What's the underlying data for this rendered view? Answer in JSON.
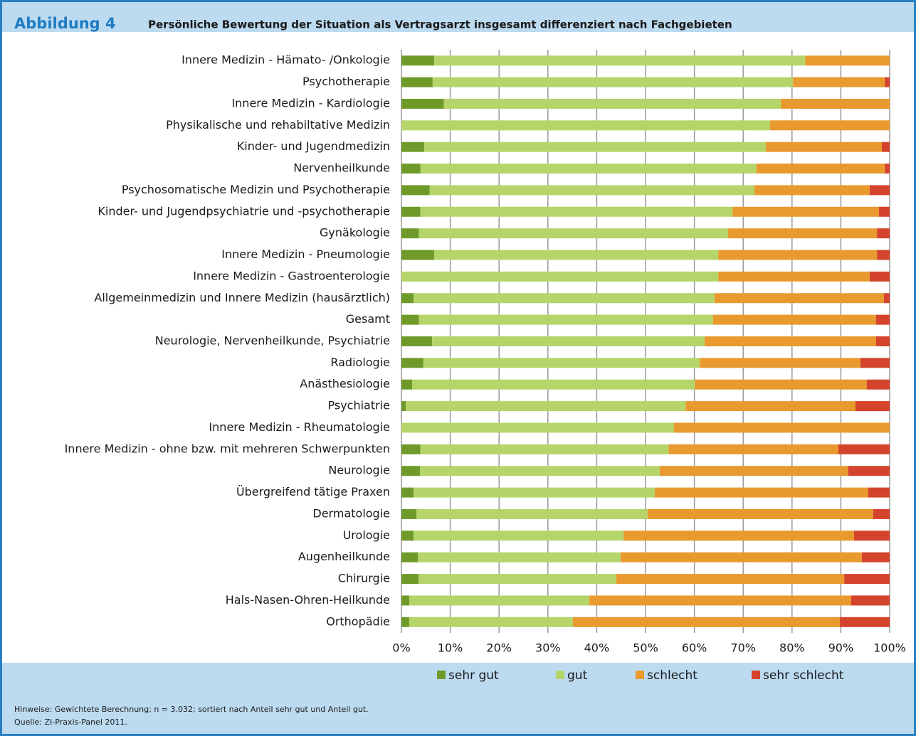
{
  "chart_data": {
    "type": "stacked_barh",
    "figure_label": "Abbildung 4",
    "title": "Persönliche Bewertung der Situation als Vertragsarzt insgesamt differenziert nach Fachgebieten",
    "categories": [
      "Innere Medizin - Hämato- /Onkologie",
      "Psychotherapie",
      "Innere Medizin - Kardiologie",
      "Physikalische und rehabiltative Medizin",
      "Kinder- und Jugendmedizin",
      "Nervenheilkunde",
      "Psychosomatische Medizin und Psychotherapie",
      "Kinder- und Jugendpsychiatrie und -psychotherapie",
      "Gynäkologie",
      "Innere Medizin - Pneumologie",
      "Innere Medizin - Gastroenterologie",
      "Allgemeinmedizin und Innere Medizin (hausärztlich)",
      "Gesamt",
      "Neurologie, Nervenheilkunde, Psychiatrie",
      "Radiologie",
      "Anästhesiologie",
      "Psychiatrie",
      "Innere Medizin - Rheumatologie",
      "Innere Medizin - ohne bzw. mit mehreren Schwerpunkten",
      "Neurologie",
      "Übergreifend tätige Praxen",
      "Dermatologie",
      "Urologie",
      "Augenheilkunde",
      "Chirurgie",
      "Hals-Nasen-Ohren-Heilkunde",
      "Orthopädie"
    ],
    "series": [
      {
        "name": "sehr gut",
        "color": "#6f9a2a",
        "values": [
          6.7,
          6.4,
          8.7,
          0,
          4.7,
          3.9,
          5.8,
          3.9,
          3.6,
          6.7,
          0,
          2.5,
          3.6,
          6.3,
          4.5,
          2.2,
          0.9,
          0,
          3.9,
          3.8,
          2.5,
          3.1,
          2.5,
          3.4,
          3.5,
          1.6,
          1.6
        ]
      },
      {
        "name": "gut",
        "color": "#b5d56a",
        "values": [
          76.0,
          73.8,
          69.0,
          75.5,
          69.9,
          68.8,
          66.5,
          63.9,
          63.3,
          58.2,
          64.9,
          61.6,
          60.2,
          55.8,
          56.6,
          57.9,
          57.3,
          55.8,
          50.8,
          49.1,
          49.4,
          47.3,
          43.0,
          41.5,
          40.5,
          36.9,
          33.5
        ]
      },
      {
        "name": "schlecht",
        "color": "#e89a2e",
        "values": [
          17.3,
          18.8,
          22.3,
          24.5,
          23.8,
          26.3,
          23.6,
          30.0,
          30.5,
          32.5,
          31.0,
          34.7,
          33.4,
          35.1,
          32.9,
          35.2,
          34.8,
          44.2,
          34.8,
          38.6,
          43.7,
          46.2,
          47.2,
          49.4,
          46.7,
          53.6,
          54.7
        ]
      },
      {
        "name": "sehr schlecht",
        "color": "#d4432c",
        "values": [
          0,
          1.0,
          0,
          0,
          1.6,
          1.0,
          4.1,
          2.2,
          2.6,
          2.6,
          4.1,
          1.2,
          2.8,
          2.8,
          6.0,
          4.7,
          7.0,
          0,
          10.5,
          8.5,
          4.4,
          3.4,
          7.3,
          5.7,
          9.3,
          7.9,
          10.2
        ]
      }
    ],
    "xlim": [
      0,
      100
    ],
    "xticks": [
      {
        "value": 0,
        "label": "0%"
      },
      {
        "value": 10,
        "label": "10%"
      },
      {
        "value": 20,
        "label": "20%"
      },
      {
        "value": 30,
        "label": "30%"
      },
      {
        "value": 40,
        "label": "40%"
      },
      {
        "value": 50,
        "label": "50%"
      },
      {
        "value": 60,
        "label": "60%"
      },
      {
        "value": 70,
        "label": "70%"
      },
      {
        "value": 80,
        "label": "80%"
      },
      {
        "value": 90,
        "label": "90%"
      },
      {
        "value": 100,
        "label": "100%"
      }
    ],
    "grid": true,
    "legend": "bottom",
    "notes": [
      "Hinweise: Gewichtete Berechnung; n = 3.032; sortiert nach Anteil sehr gut und Anteil gut.",
      "Quelle: ZI-Praxis-Panel 2011."
    ]
  }
}
